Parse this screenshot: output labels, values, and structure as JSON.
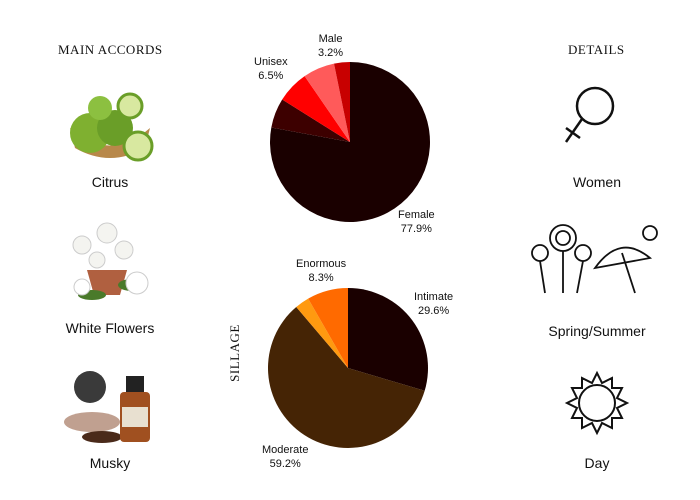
{
  "accords": {
    "title": "MAIN ACCORDS",
    "items": [
      {
        "label": "Citrus"
      },
      {
        "label": "White Flowers"
      },
      {
        "label": "Musky"
      }
    ]
  },
  "details": {
    "title": "DETAILS",
    "items": [
      {
        "label": "Women",
        "icon": "venus-icon"
      },
      {
        "label": "Spring/Summer",
        "icon": "spring-summer-icon"
      },
      {
        "label": "Day",
        "icon": "sun-icon"
      }
    ]
  },
  "chart_data": [
    {
      "type": "pie",
      "title": "",
      "slices": [
        {
          "name": "Female",
          "value": 77.9,
          "label": "Female",
          "pct": "77.9%",
          "color": "#1a0000"
        },
        {
          "name": "",
          "value": 6.0,
          "color": "#3d0000"
        },
        {
          "name": "Unisex",
          "value": 6.5,
          "label": "Unisex",
          "pct": "6.5%",
          "color": "#ff0000"
        },
        {
          "name": "",
          "value": 6.4,
          "color": "#ff5a5a"
        },
        {
          "name": "Male",
          "value": 3.2,
          "label": "Male",
          "pct": "3.2%",
          "color": "#c80000"
        }
      ]
    },
    {
      "type": "pie",
      "title": "SILLAGE",
      "slices": [
        {
          "name": "Intimate",
          "value": 29.6,
          "label": "Intimate",
          "pct": "29.6%",
          "color": "#1a0000"
        },
        {
          "name": "Moderate",
          "value": 59.2,
          "label": "Moderate",
          "pct": "59.2%",
          "color": "#452405"
        },
        {
          "name": "",
          "value": 2.9,
          "color": "#ff9a10"
        },
        {
          "name": "Enormous",
          "value": 8.3,
          "label": "Enormous",
          "pct": "8.3%",
          "color": "#ff6a00"
        }
      ]
    }
  ]
}
